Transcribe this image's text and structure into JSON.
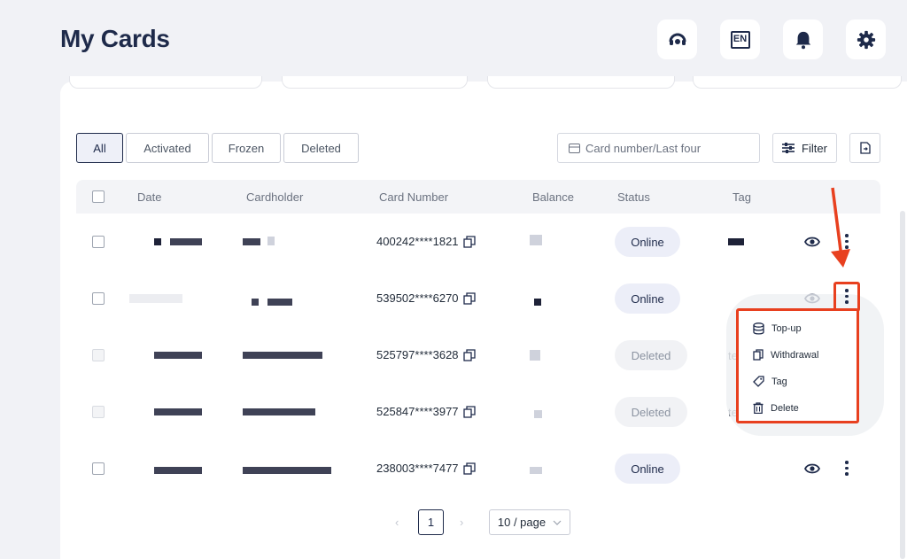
{
  "page": {
    "title": "My Cards"
  },
  "tabs": [
    {
      "label": "All"
    },
    {
      "label": "Activated"
    },
    {
      "label": "Frozen"
    },
    {
      "label": "Deleted"
    }
  ],
  "search": {
    "placeholder": "Card number/Last four"
  },
  "filter": {
    "label": "Filter"
  },
  "table": {
    "headers": {
      "date": "Date",
      "cardholder": "Cardholder",
      "card_number": "Card Number",
      "balance": "Balance",
      "status": "Status",
      "tag": "Tag"
    },
    "rows": [
      {
        "card_number": "400242****1821",
        "status": "Online"
      },
      {
        "card_number": "539502****6270",
        "status": "Online"
      },
      {
        "card_number": "525797****3628",
        "status": "Deleted",
        "tag": "te"
      },
      {
        "card_number": "525847****3977",
        "status": "Deleted",
        "tag": "te"
      },
      {
        "card_number": "238003****7477",
        "status": "Online"
      }
    ]
  },
  "menu": {
    "items": [
      {
        "label": "Top-up",
        "icon": "database-icon"
      },
      {
        "label": "Withdrawal",
        "icon": "copy-icon"
      },
      {
        "label": "Tag",
        "icon": "tag-icon"
      },
      {
        "label": "Delete",
        "icon": "trash-icon"
      }
    ]
  },
  "pagination": {
    "current": "1",
    "page_size": "10 / page"
  },
  "colors": {
    "brand": "#1e2a4a",
    "highlight": "#e8401f",
    "online_bg": "#eceef8"
  }
}
